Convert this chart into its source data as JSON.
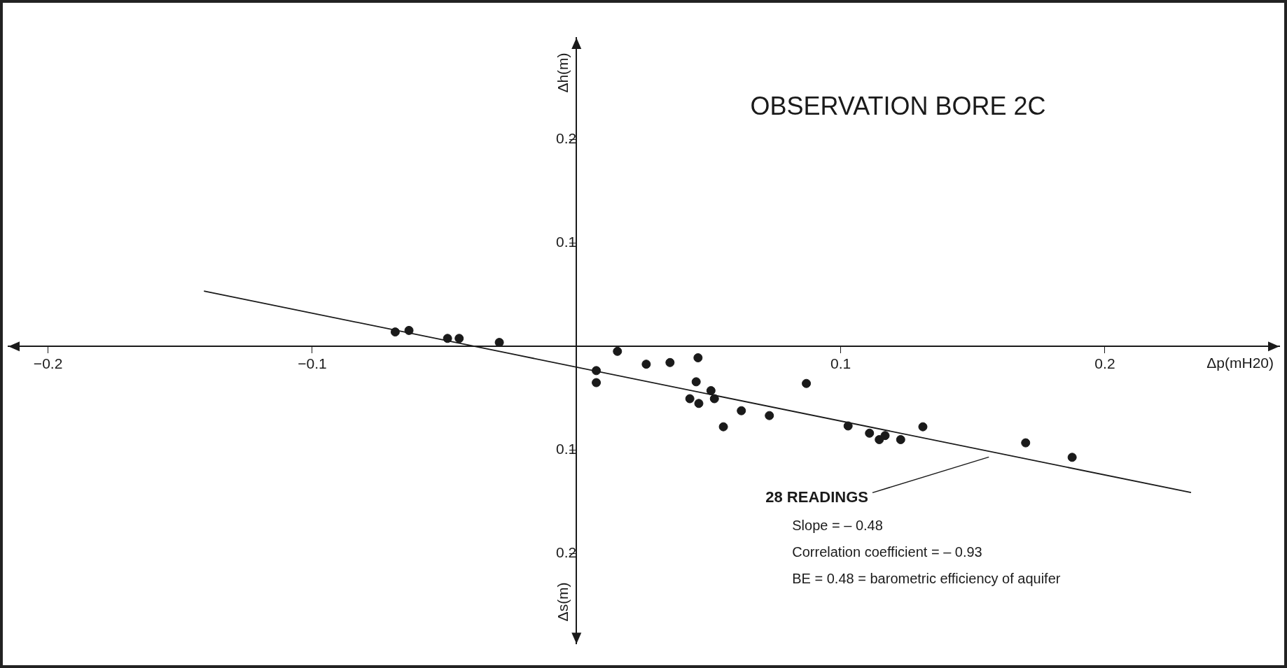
{
  "chart_data": {
    "type": "scatter",
    "title": "OBSERVATION BORE 2C",
    "xlabel": "Δp(mH20)",
    "ylabel": "Δh(m)",
    "annotations": [
      "28 READINGS",
      "Slope = – 0.48",
      "Correlation coefficient = – 0.93",
      "BE = 0.48 = barometric efficiency of aquifer",
      "Δs(m)"
    ],
    "xlim": [
      -0.215,
      0.266
    ],
    "ylim": [
      -0.287,
      0.298
    ],
    "xticks": [
      {
        "value": -0.2,
        "label": "−0.2"
      },
      {
        "value": -0.1,
        "label": "−0.1"
      },
      0.1,
      0.2
    ],
    "yticks": [
      {
        "value": -0.2,
        "label": "0.2"
      },
      {
        "value": -0.1,
        "label": "0.1"
      },
      0.1,
      0.2
    ],
    "grid": false,
    "legend": false,
    "marker": "circle",
    "series": [
      {
        "type": "scatter",
        "color": "#1a1a1a",
        "x": [
          -0.0686,
          -0.0634,
          -0.0488,
          -0.0444,
          -0.0292,
          0.0075,
          0.0075,
          0.0155,
          0.0264,
          0.0354,
          0.046,
          0.0453,
          0.0509,
          0.0429,
          0.0463,
          0.0522,
          0.0556,
          0.0624,
          0.073,
          0.087,
          0.1028,
          0.1109,
          0.1146,
          0.1168,
          0.1227,
          0.1311,
          0.17,
          0.1876
        ],
        "values": [
          0.014,
          0.0155,
          0.0078,
          0.0078,
          0.0039,
          -0.0233,
          -0.0349,
          -0.0047,
          -0.0171,
          -0.0155,
          -0.0109,
          -0.0341,
          -0.0426,
          -0.0504,
          -0.055,
          -0.0504,
          -0.0775,
          -0.062,
          -0.0667,
          -0.0357,
          -0.0767,
          -0.0837,
          -0.0899,
          -0.086,
          -0.0899,
          -0.0775,
          -0.093,
          -0.107
        ]
      },
      {
        "type": "line",
        "color": "#1a1a1a",
        "marker": "none",
        "x": [
          -0.141,
          0.2326
        ],
        "values": [
          0.0535,
          -0.141
        ]
      }
    ]
  }
}
